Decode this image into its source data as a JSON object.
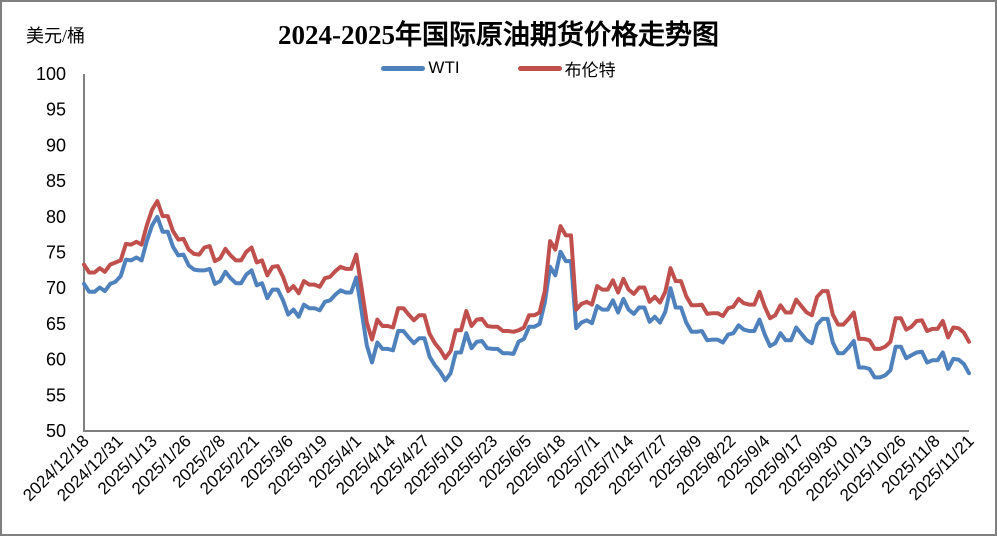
{
  "header": {
    "unit_label": "美元/桶",
    "title": "2024-2025年国际原油期货价格走势图"
  },
  "chart_data": {
    "type": "line",
    "title": "2024-2025年国际原油期货价格走势图",
    "xlabel": "",
    "ylabel": "美元/桶",
    "ylim": [
      50,
      100
    ],
    "yticks": [
      100,
      95,
      90,
      85,
      80,
      75,
      70,
      65,
      60,
      55,
      50
    ],
    "grid": false,
    "legend_position": "top-center",
    "axis_color": "#808080",
    "x_tick_labels": [
      "2024/12/18",
      "2024/12/31",
      "2025/1/13",
      "2025/1/26",
      "2025/2/8",
      "2025/2/21",
      "2025/3/6",
      "2025/3/19",
      "2025/4/1",
      "2025/4/14",
      "2025/4/27",
      "2025/5/10",
      "2025/5/23",
      "2025/6/5",
      "2025/6/18",
      "2025/7/1",
      "2025/7/14",
      "2025/7/27",
      "2025/8/9",
      "2025/8/22",
      "2025/9/4",
      "2025/9/17",
      "2025/9/30",
      "2025/10/13",
      "2025/10/26",
      "2025/11/8",
      "2025/11/21"
    ],
    "x_tick_interval_days": 13,
    "x_total_days": 338,
    "sample_interval_days": 2,
    "series": [
      {
        "key": "wti",
        "name": "WTI",
        "color": "#4F81BD",
        "values": [
          70.6,
          69.5,
          69.5,
          70.1,
          69.6,
          70.6,
          70.9,
          71.7,
          74.0,
          73.9,
          74.3,
          73.9,
          76.6,
          78.8,
          80.0,
          77.9,
          77.9,
          75.8,
          74.6,
          74.7,
          73.2,
          72.6,
          72.5,
          72.5,
          72.7,
          70.6,
          71.0,
          72.3,
          71.4,
          70.7,
          70.7,
          71.9,
          72.5,
          70.4,
          70.7,
          68.6,
          69.8,
          69.8,
          68.3,
          66.3,
          67.0,
          66.0,
          67.7,
          67.2,
          67.2,
          66.9,
          68.1,
          68.3,
          69.1,
          69.7,
          69.4,
          69.4,
          71.5,
          66.9,
          62.0,
          59.6,
          62.4,
          61.5,
          61.5,
          61.3,
          64.0,
          64.0,
          63.1,
          62.3,
          63.0,
          63.0,
          60.4,
          59.2,
          58.3,
          57.1,
          58.1,
          61.0,
          61.0,
          63.7,
          61.6,
          62.5,
          62.6,
          61.6,
          61.5,
          61.5,
          60.9,
          60.9,
          60.8,
          62.5,
          62.9,
          64.6,
          64.6,
          65.0,
          68.0,
          73.0,
          71.8,
          75.1,
          73.8,
          73.8,
          64.4,
          65.2,
          65.5,
          65.1,
          67.5,
          67.0,
          67.0,
          68.3,
          66.6,
          68.5,
          67.0,
          66.4,
          67.3,
          67.3,
          65.3,
          66.0,
          65.2,
          66.7,
          70.0,
          67.3,
          67.3,
          65.2,
          63.9,
          63.9,
          64.0,
          62.7,
          62.8,
          62.8,
          62.4,
          63.5,
          63.7,
          64.8,
          64.2,
          64.0,
          64.0,
          65.6,
          63.5,
          61.9,
          62.3,
          63.7,
          62.7,
          62.7,
          64.5,
          63.6,
          62.7,
          62.3,
          64.9,
          65.7,
          65.7,
          62.4,
          60.9,
          60.9,
          61.7,
          62.6,
          58.9,
          58.9,
          58.7,
          57.5,
          57.5,
          57.8,
          58.5,
          61.8,
          61.8,
          60.2,
          60.6,
          61.0,
          61.1,
          59.6,
          59.9,
          59.9,
          61.0,
          58.7,
          60.1,
          60.0,
          59.4,
          58.1
        ]
      },
      {
        "key": "brent",
        "name": "布伦特",
        "color": "#C0504D",
        "values": [
          73.3,
          72.2,
          72.2,
          72.8,
          72.3,
          73.3,
          73.6,
          73.9,
          76.2,
          76.1,
          76.5,
          76.1,
          78.8,
          81.0,
          82.2,
          80.1,
          80.1,
          78.0,
          76.8,
          76.9,
          75.4,
          74.8,
          74.7,
          75.7,
          75.9,
          73.8,
          74.2,
          75.5,
          74.6,
          73.9,
          73.9,
          75.1,
          75.7,
          73.6,
          73.9,
          71.8,
          73.0,
          73.1,
          71.6,
          69.6,
          70.3,
          69.3,
          71.0,
          70.5,
          70.5,
          70.2,
          71.4,
          71.6,
          72.4,
          73.0,
          72.7,
          72.7,
          74.7,
          70.1,
          65.2,
          62.8,
          65.6,
          64.7,
          64.7,
          64.5,
          67.2,
          67.2,
          66.3,
          65.5,
          66.2,
          66.2,
          63.6,
          62.3,
          61.4,
          60.2,
          61.2,
          64.1,
          64.1,
          66.8,
          64.7,
          65.6,
          65.7,
          64.7,
          64.6,
          64.6,
          64.0,
          64.0,
          63.9,
          64.1,
          64.5,
          66.2,
          66.2,
          66.6,
          69.6,
          76.6,
          75.4,
          78.7,
          77.4,
          77.4,
          67.0,
          67.8,
          68.1,
          67.7,
          70.3,
          69.8,
          69.8,
          71.1,
          69.4,
          71.3,
          69.8,
          69.2,
          70.1,
          70.1,
          68.1,
          68.8,
          68.0,
          69.5,
          72.8,
          71.0,
          71.0,
          68.9,
          67.6,
          67.6,
          67.7,
          66.4,
          66.5,
          66.5,
          66.1,
          67.2,
          67.4,
          68.5,
          67.9,
          67.7,
          67.7,
          69.5,
          67.4,
          65.8,
          66.2,
          67.6,
          66.6,
          66.6,
          68.4,
          67.5,
          66.6,
          66.2,
          68.8,
          69.6,
          69.6,
          66.3,
          64.9,
          64.9,
          65.7,
          66.6,
          62.9,
          62.9,
          62.7,
          61.5,
          61.5,
          61.8,
          62.5,
          65.8,
          65.8,
          64.2,
          64.6,
          65.4,
          65.5,
          64.0,
          64.3,
          64.3,
          65.4,
          63.1,
          64.5,
          64.4,
          63.8,
          62.5
        ]
      }
    ]
  }
}
